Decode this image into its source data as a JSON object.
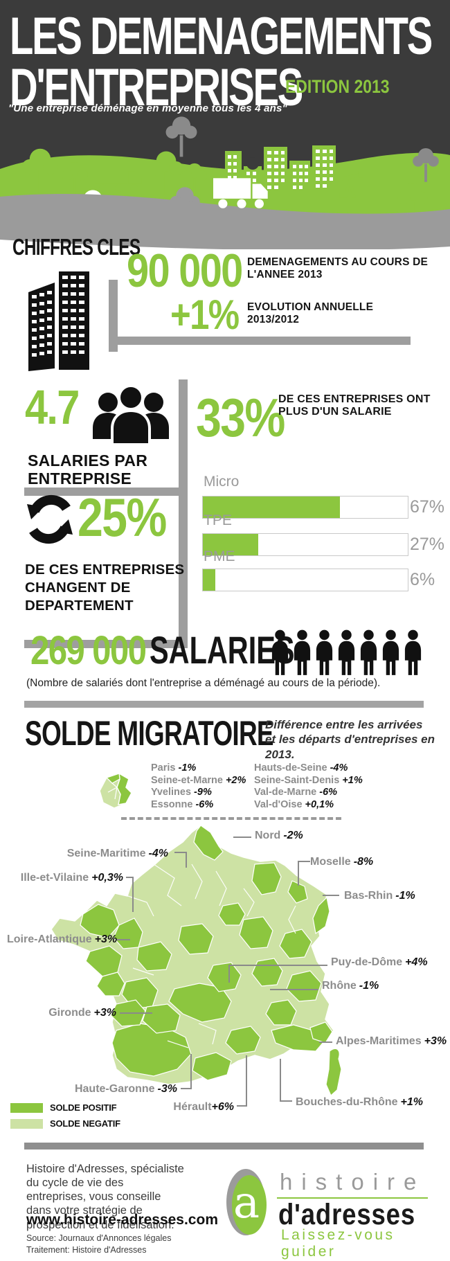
{
  "colors": {
    "accent_green": "#8CC63F",
    "pale_green": "#CDE2A4",
    "header_bg": "#3B3B3B",
    "rail_gray": "#9E9E9E",
    "label_gray": "#8C8C8C"
  },
  "header": {
    "title_line1": "LES DEMENAGEMENTS",
    "title_line2": "D'ENTREPRISES",
    "edition": "EDITION 2013",
    "quote": "\"Une entreprise déménage en moyenne tous les 4 ans\""
  },
  "key_figures": {
    "heading": "CHIFFRES CLES",
    "moves_value": "90 000",
    "moves_label": "DEMENAGEMENTS AU COURS DE L'ANNEE 2013",
    "evolution_value": "+1%",
    "evolution_label": "EVOLUTION ANNUELLE 2013/2012",
    "employees_per_company_value": "4.7",
    "employees_per_company_label": "SALARIES PAR ENTREPRISE",
    "more_than_one_value": "33%",
    "more_than_one_label": "DE CES ENTREPRISES ONT PLUS D'UN SALARIE",
    "change_dept_value": "25%",
    "change_dept_label": "DE CES ENTREPRISES CHANGENT DE DEPARTEMENT"
  },
  "chart_data": {
    "type": "bar",
    "orientation": "horizontal",
    "categories": [
      "Micro",
      "TPE",
      "PME"
    ],
    "values": [
      67,
      27,
      6
    ],
    "value_labels": [
      "67%",
      "27%",
      "6%"
    ],
    "xlim": [
      0,
      100
    ],
    "unit": "%",
    "bar_color": "#8CC63F",
    "grid": false,
    "legend_position": "none"
  },
  "employees_total": {
    "value": "269 000",
    "label": "SALARIES",
    "caption": "(Nombre de salariés dont l'entreprise a déménagé au cours de la période)."
  },
  "migration": {
    "title": "SOLDE MIGRATOIRE",
    "subtitle": "Différence entre les arrivées et les départs d'entreprises en 2013.",
    "idf_labels": [
      {
        "name": "Paris",
        "value": "-1%"
      },
      {
        "name": "Seine-et-Marne",
        "value": "+2%"
      },
      {
        "name": "Yvelines",
        "value": "-9%"
      },
      {
        "name": "Essonne",
        "value": "-6%"
      },
      {
        "name": "Hauts-de-Seine",
        "value": "-4%"
      },
      {
        "name": "Seine-Saint-Denis",
        "value": "+1%"
      },
      {
        "name": "Val-de-Marne",
        "value": "-6%"
      },
      {
        "name": "Val-d'Oise",
        "value": "+0,1%"
      }
    ],
    "map_labels": [
      {
        "name": "Nord",
        "value": "-2%"
      },
      {
        "name": "Seine-Maritime",
        "value": "-4%"
      },
      {
        "name": "Moselle",
        "value": "-8%"
      },
      {
        "name": "Ille-et-Vilaine",
        "value": "+0,3%"
      },
      {
        "name": "Bas-Rhin",
        "value": "-1%"
      },
      {
        "name": "Loire-Atlantique",
        "value": "+3%"
      },
      {
        "name": "Puy-de-Dôme",
        "value": "+4%"
      },
      {
        "name": "Rhône",
        "value": "-1%"
      },
      {
        "name": "Gironde",
        "value": "+3%"
      },
      {
        "name": "Alpes-Maritimes",
        "value": "+3%"
      },
      {
        "name": "Haute-Garonne",
        "value": "-3%"
      },
      {
        "name": "Hérault",
        "value": "+6%"
      },
      {
        "name": "Bouches-du-Rhône",
        "value": "+1%"
      }
    ],
    "legend": [
      {
        "label": "SOLDE POSITIF",
        "color": "#8CC63F"
      },
      {
        "label": "SOLDE NEGATIF",
        "color": "#CDE2A4"
      }
    ]
  },
  "footer": {
    "about": "Histoire d'Adresses, spécialiste du cycle de vie des entreprises, vous conseille dans votre stratégie de prospection et de fidélisation.",
    "website": "www.histoire-adresses.com",
    "source_line1": "Source: Journaux d'Annonces légales",
    "source_line2": "Traitement: Histoire d'Adresses",
    "logo_word1": "histoire",
    "logo_word2": "d'adresses",
    "logo_tagline": "Laissez-vous guider",
    "logo_letter": "a"
  }
}
